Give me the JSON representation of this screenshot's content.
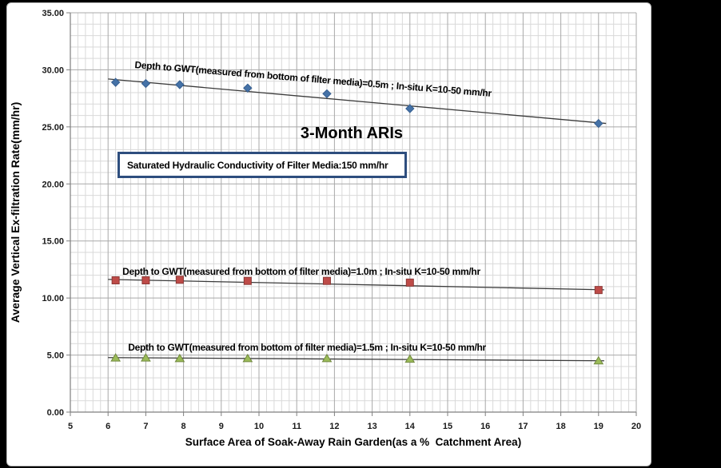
{
  "chart_data": {
    "type": "scatter",
    "title": "3-Month ARIs",
    "xlabel": "Surface Area of Soak-Away Rain Garden(as a %  Catchment Area)",
    "ylabel": "Average Vertical Ex-filtration Rate(mm/hr)",
    "xlim": [
      5,
      20
    ],
    "ylim": [
      0,
      35
    ],
    "x_major_step": 1,
    "x_minor_step": 0.2,
    "y_major_step": 5,
    "y_minor_step": 1,
    "grid": true,
    "legend": "none (series labeled by in-plot annotations)",
    "x_tick_labels": [
      "5",
      "6",
      "7",
      "8",
      "9",
      "10",
      "11",
      "12",
      "13",
      "14",
      "15",
      "16",
      "17",
      "18",
      "19",
      "20"
    ],
    "y_tick_labels": [
      "0.00",
      "5.00",
      "10.00",
      "15.00",
      "20.00",
      "25.00",
      "30.00",
      "35.00"
    ],
    "note_box": {
      "text": "Saturated Hydraulic Conductivity of Filter Media:150 mm/hr",
      "border_color": "#2E4E7E"
    },
    "colors": {
      "grid_minor": "#D9D9D9",
      "grid_major": "#A9A9A9",
      "axis": "#7F7F7F",
      "trendline": "#3B3B3B"
    },
    "x": [
      6.2,
      7.0,
      7.9,
      9.7,
      11.8,
      14.0,
      19.0
    ],
    "series": [
      {
        "name": "Depth to GWT 0.5m",
        "label": "Depth to GWT(measured from bottom of filter media)=0.5m ; In-situ K=10-50 mm/hr",
        "marker": "diamond",
        "fill": "#4572A7",
        "edge": "#365F91",
        "values": [
          28.9,
          28.8,
          28.7,
          28.4,
          27.9,
          26.6,
          25.3
        ],
        "trend": {
          "x1": 6.0,
          "y1": 29.2,
          "x2": 19.2,
          "y2": 25.3
        },
        "label_anchor": {
          "x": 6.7,
          "y": 30.17
        },
        "label_rotate": 4.6
      },
      {
        "name": "Depth to GWT 1.0m",
        "label": "Depth to GWT(measured from bottom of filter media)=1.0m ; In-situ K=10-50 mm/hr",
        "marker": "square",
        "fill": "#BE4B48",
        "edge": "#8C3836",
        "values": [
          11.55,
          11.55,
          11.6,
          11.5,
          11.5,
          11.35,
          10.7
        ],
        "trend": {
          "x1": 6.0,
          "y1": 11.63,
          "x2": 19.15,
          "y2": 10.72
        },
        "label_anchor": {
          "x": 6.38,
          "y": 12.03
        },
        "label_rotate": 0
      },
      {
        "name": "Depth to GWT 1.5m",
        "label": "Depth to GWT(measured from bottom of filter media)=1.5m ; In-situ K=10-50 mm/hr",
        "marker": "triangle",
        "fill": "#9BBB59",
        "edge": "#71893F",
        "values": [
          4.75,
          4.75,
          4.7,
          4.7,
          4.7,
          4.65,
          4.5
        ],
        "trend": {
          "x1": 6.0,
          "y1": 4.78,
          "x2": 19.15,
          "y2": 4.5
        },
        "label_anchor": {
          "x": 6.53,
          "y": 5.39
        },
        "label_rotate": 0
      }
    ]
  }
}
